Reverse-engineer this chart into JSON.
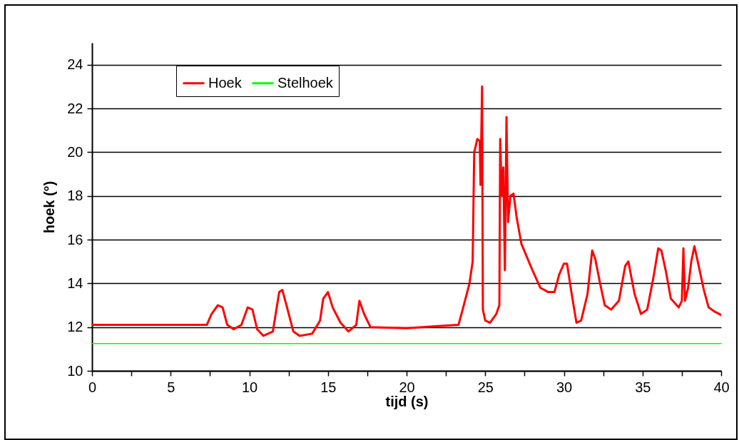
{
  "chart_data": {
    "type": "line",
    "xlabel": "tijd (s)",
    "ylabel": "hoek (°)",
    "xlim": [
      0,
      40
    ],
    "ylim": [
      10,
      25
    ],
    "xticks": [
      0,
      {
        "value": 2.5,
        "label": null
      },
      5,
      {
        "value": 7.5,
        "label": null
      },
      10,
      {
        "value": 12.5,
        "label": null
      },
      15,
      {
        "value": 17.5,
        "label": null
      },
      20,
      {
        "value": 22.5,
        "label": null
      },
      25,
      {
        "value": 27.5,
        "label": null
      },
      30,
      {
        "value": 32.5,
        "label": null
      },
      35,
      {
        "value": 37.5,
        "label": null
      },
      40
    ],
    "yticks": [
      10,
      12,
      14,
      16,
      18,
      20,
      22,
      24
    ],
    "grid": "y",
    "legend": "top left",
    "line_style": "solid",
    "series": [
      {
        "name": "Hoek",
        "color": "#ff0000",
        "x": [
          0,
          7.3,
          7.6,
          8.0,
          8.3,
          8.6,
          9.0,
          9.5,
          9.9,
          10.2,
          10.5,
          10.9,
          11.5,
          11.9,
          12.1,
          12.4,
          12.8,
          13.2,
          14.0,
          14.5,
          14.7,
          15.0,
          15.3,
          15.8,
          16.3,
          16.8,
          17.0,
          17.3,
          17.7,
          20,
          22,
          23.3,
          23.6,
          24.0,
          24.2,
          24.3,
          24.5,
          24.65,
          24.7,
          24.8,
          24.85,
          25.0,
          25.3,
          25.7,
          25.9,
          25.95,
          26.05,
          26.15,
          26.25,
          26.35,
          26.45,
          26.6,
          26.8,
          27.0,
          27.3,
          28.0,
          28.5,
          29.0,
          29.4,
          29.7,
          30.0,
          30.2,
          30.5,
          30.8,
          31.1,
          31.5,
          31.8,
          32.0,
          32.3,
          32.6,
          33.0,
          33.5,
          33.9,
          34.1,
          34.5,
          34.9,
          35.3,
          35.7,
          36.0,
          36.2,
          36.5,
          36.8,
          37.3,
          37.5,
          37.6,
          37.7,
          37.9,
          38.1,
          38.3,
          38.6,
          38.9,
          39.2,
          39.6,
          40
        ],
        "values": [
          12.1,
          12.1,
          12.6,
          13.0,
          12.9,
          12.1,
          11.9,
          12.1,
          12.9,
          12.8,
          11.9,
          11.6,
          11.8,
          13.6,
          13.7,
          12.9,
          11.8,
          11.6,
          11.7,
          12.3,
          13.3,
          13.6,
          12.9,
          12.2,
          11.8,
          12.1,
          13.2,
          12.6,
          12.0,
          11.95,
          12.05,
          12.1,
          12.9,
          14.0,
          15.0,
          20.0,
          20.6,
          20.5,
          18.5,
          23.0,
          12.8,
          12.3,
          12.2,
          12.6,
          13.0,
          20.6,
          18.0,
          19.3,
          14.6,
          21.6,
          16.8,
          18.0,
          18.1,
          17.0,
          15.8,
          14.6,
          13.8,
          13.6,
          13.6,
          14.4,
          14.9,
          14.9,
          13.5,
          12.2,
          12.3,
          13.5,
          15.5,
          15.1,
          14.0,
          13.0,
          12.8,
          13.2,
          14.8,
          15.0,
          13.5,
          12.6,
          12.8,
          14.3,
          15.6,
          15.5,
          14.5,
          13.3,
          12.9,
          13.2,
          15.6,
          13.2,
          13.8,
          15.0,
          15.7,
          14.7,
          13.7,
          12.9,
          12.7,
          12.55
        ]
      },
      {
        "name": "Stelhoek",
        "color": "#00ff00",
        "x": [
          0,
          40
        ],
        "values": [
          11.25,
          11.25
        ]
      }
    ]
  }
}
